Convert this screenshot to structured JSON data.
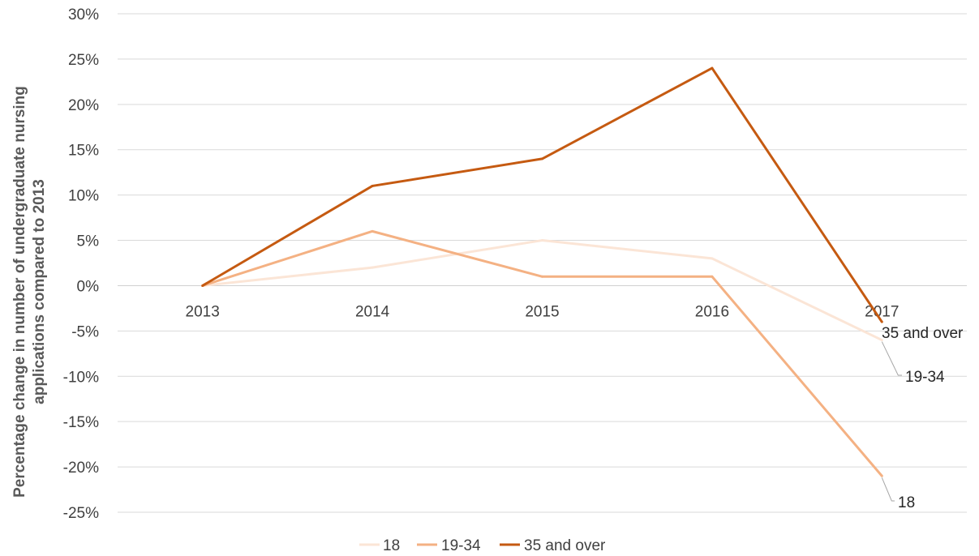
{
  "chart_data": {
    "type": "line",
    "categories": [
      "2013",
      "2014",
      "2015",
      "2016",
      "2017"
    ],
    "series": [
      {
        "name": "18",
        "values": [
          0,
          2,
          5,
          3,
          -6
        ],
        "color": "#fbe5d6"
      },
      {
        "name": "19-34",
        "values": [
          0,
          6,
          1,
          1,
          -21
        ],
        "color": "#f4b183"
      },
      {
        "name": "35 and over",
        "values": [
          0,
          11,
          14,
          24,
          -4
        ],
        "color": "#c55a11"
      }
    ],
    "ylabel": "Percentage change in number of undergraduate nursing applications compared to 2013",
    "ylabel_lines": [
      "Percentage change in number of undergraduate nursing",
      "applications compared to 2013"
    ],
    "ylim": [
      -25,
      30
    ],
    "yticks": [
      30,
      25,
      20,
      15,
      10,
      5,
      0,
      -5,
      -10,
      -15,
      -20,
      -25
    ],
    "ytick_labels": [
      "30%",
      "25%",
      "20%",
      "15%",
      "10%",
      "5%",
      "0%",
      "-5%",
      "-10%",
      "-15%",
      "-20%",
      "-25%"
    ],
    "grid": true,
    "legend_position": "bottom",
    "end_labels": [
      "35 and over",
      "19-34",
      "18"
    ]
  }
}
